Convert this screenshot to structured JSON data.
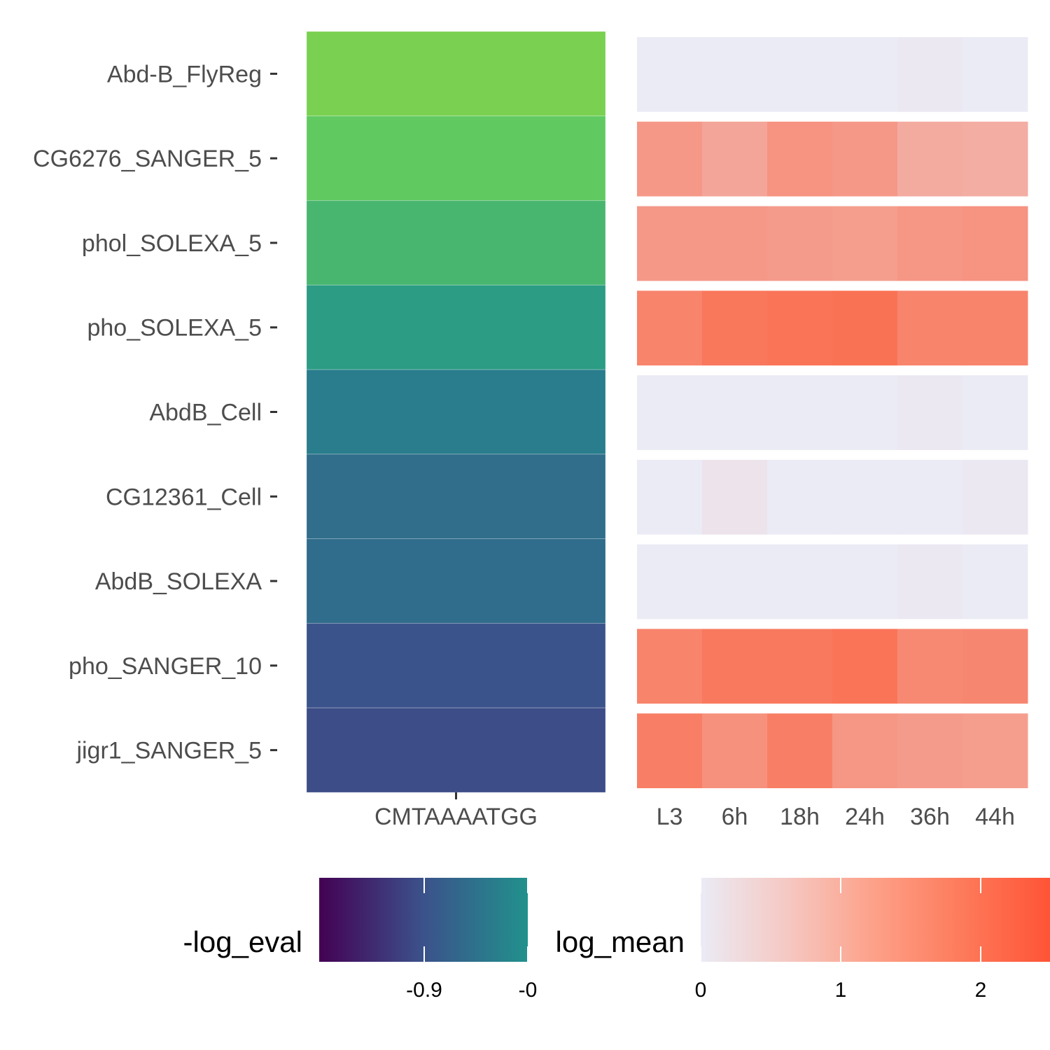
{
  "chart_data": [
    {
      "type": "heatmap",
      "title": "",
      "x": [
        "CMTAAAATGG"
      ],
      "y": [
        "Abd-B_FlyReg",
        "CG6276_SANGER_5",
        "phol_SOLEXA_5",
        "pho_SOLEXA_5",
        "AbdB_Cell",
        "CG12361_Cell",
        "AbdB_SOLEXA",
        "pho_SANGER_10",
        "jigr1_SANGER_5"
      ],
      "values": [
        [
          -0.02
        ],
        [
          -0.32
        ],
        [
          -0.45
        ],
        [
          -0.6
        ],
        [
          -0.76
        ],
        [
          -0.84
        ],
        [
          -0.85
        ],
        [
          -0.97
        ],
        [
          -1.0
        ]
      ],
      "legend": {
        "title": "-log_eval",
        "ticks": [
          -0.9,
          -0.0
        ],
        "tick_labels": [
          "-0.9",
          "-0"
        ],
        "range": [
          -1.3,
          -0.02
        ],
        "colors": [
          "#440154",
          "#3b528b",
          "#21918c",
          "#5ec962",
          "#7ad151"
        ]
      }
    },
    {
      "type": "heatmap",
      "title": "",
      "x": [
        "L3",
        "6h",
        "18h",
        "24h",
        "36h",
        "44h"
      ],
      "y": [
        "Abd-B_FlyReg",
        "CG6276_SANGER_5",
        "phol_SOLEXA_5",
        "pho_SOLEXA_5",
        "AbdB_Cell",
        "CG12361_Cell",
        "AbdB_SOLEXA",
        "pho_SANGER_10",
        "jigr1_SANGER_5"
      ],
      "values": [
        [
          0.0,
          0.0,
          0.0,
          0.0,
          0.05,
          0.0
        ],
        [
          1.6,
          1.35,
          1.7,
          1.6,
          1.25,
          1.2
        ],
        [
          1.6,
          1.6,
          1.55,
          1.5,
          1.65,
          1.7
        ],
        [
          2.0,
          2.25,
          2.3,
          2.35,
          2.0,
          2.0
        ],
        [
          0.0,
          0.0,
          0.0,
          0.0,
          0.05,
          0.0
        ],
        [
          0.0,
          0.15,
          0.0,
          0.0,
          0.0,
          0.05
        ],
        [
          0.0,
          0.0,
          0.0,
          0.0,
          0.05,
          0.0
        ],
        [
          2.0,
          2.2,
          2.2,
          2.3,
          1.9,
          1.95
        ],
        [
          2.1,
          1.75,
          2.1,
          1.65,
          1.55,
          1.5
        ]
      ],
      "legend": {
        "title": "log_mean",
        "ticks": [
          0,
          1,
          2
        ],
        "tick_labels": [
          "0",
          "1",
          "2"
        ],
        "range": [
          0,
          2.5
        ],
        "colors": [
          "#ebebf5",
          "#fb6a4a"
        ]
      }
    }
  ]
}
